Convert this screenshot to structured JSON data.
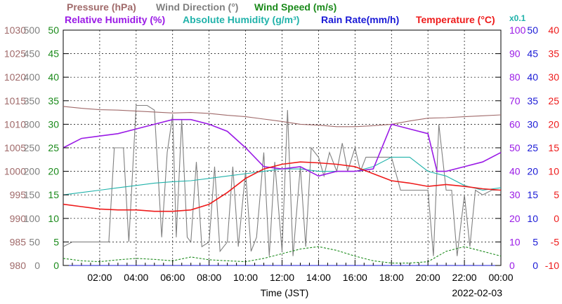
{
  "chart_data": {
    "type": "line",
    "date": "2022-02-03",
    "xlabel": "Time (JST)",
    "x_ticks": [
      "02:00",
      "04:00",
      "06:00",
      "08:00",
      "10:00",
      "12:00",
      "14:00",
      "16:00",
      "18:00",
      "20:00",
      "22:00",
      "00:00"
    ],
    "x_range_hours": [
      0,
      24
    ],
    "multiplier_note": "x0.1",
    "grid": true,
    "axes": [
      {
        "key": "pressure",
        "label": "Pressure (hPa)",
        "color": "#a06a6a",
        "range": [
          980,
          1030
        ],
        "ticks": [
          "980",
          "985",
          "990",
          "995",
          "1000",
          "1005",
          "1010",
          "1015",
          "1020",
          "1025",
          "1030"
        ]
      },
      {
        "key": "wind_dir",
        "label": "Wind Direction (°)",
        "color": "#808080",
        "range": [
          0,
          500
        ],
        "ticks": [
          "0",
          "50",
          "100",
          "150",
          "200",
          "250",
          "300",
          "350",
          "400",
          "450",
          "500"
        ]
      },
      {
        "key": "wind_speed",
        "label": "Wind Speed (m/s)",
        "color": "#1a8a1a",
        "range": [
          0,
          50
        ],
        "ticks": [
          "0",
          "5",
          "10",
          "15",
          "20",
          "25",
          "30",
          "35",
          "40",
          "45",
          "50"
        ]
      },
      {
        "key": "humidity",
        "label": "Relative Humidity (%)",
        "color": "#9a1ae6",
        "range": [
          0,
          100
        ],
        "ticks": [
          "0",
          "10",
          "20",
          "30",
          "40",
          "50",
          "60",
          "70",
          "80",
          "90",
          "100"
        ]
      },
      {
        "key": "abs_humidity",
        "label": "Absolute Humidity (g/m³)",
        "color": "#20b2aa",
        "range": [
          0,
          50
        ],
        "ticks": []
      },
      {
        "key": "rain",
        "label": "Rain Rate(mm/h)",
        "color": "#1a1ad6",
        "range": [
          0,
          50
        ],
        "ticks": [
          "0",
          "5",
          "10",
          "15",
          "20",
          "25",
          "30",
          "35",
          "40",
          "45",
          "50"
        ]
      },
      {
        "key": "temperature",
        "label": "Temperature (°C)",
        "color": "#ee1a1a",
        "range": [
          -10,
          40
        ],
        "ticks": [
          "-10",
          "-5",
          "0",
          "5",
          "10",
          "15",
          "20",
          "25",
          "30",
          "35",
          "40"
        ]
      }
    ],
    "series": [
      {
        "name": "Pressure (hPa)",
        "axis": "pressure",
        "color": "#a06a6a",
        "x": [
          0,
          1,
          2,
          3,
          4,
          5,
          6,
          7,
          8,
          9,
          10,
          11,
          12,
          13,
          14,
          15,
          16,
          17,
          18,
          19,
          20,
          21,
          22,
          23,
          24
        ],
        "values": [
          1013.8,
          1013.4,
          1013.1,
          1013.0,
          1012.8,
          1012.6,
          1012.4,
          1012.5,
          1012.3,
          1011.9,
          1011.6,
          1011.1,
          1010.6,
          1010.0,
          1009.8,
          1009.5,
          1009.5,
          1009.7,
          1010.0,
          1010.7,
          1011.3,
          1011.4,
          1011.6,
          1011.8,
          1012.0
        ]
      },
      {
        "name": "Wind Direction (°)",
        "axis": "wind_dir",
        "color": "#808080",
        "x": [
          0,
          0.5,
          1,
          1.5,
          2,
          2.5,
          2.8,
          3,
          3.3,
          3.6,
          4,
          4.3,
          4.6,
          5,
          5.4,
          5.7,
          6,
          6.2,
          6.5,
          6.8,
          7,
          7.3,
          7.6,
          8,
          8.3,
          8.6,
          9,
          9.3,
          9.6,
          10,
          10.3,
          10.6,
          11,
          11.3,
          11.6,
          12,
          12.3,
          12.6,
          13,
          13.3,
          13.6,
          14,
          14.3,
          14.6,
          15,
          15.3,
          15.6,
          16,
          16.3,
          16.6,
          17,
          17.5,
          18,
          18.5,
          19,
          19.3,
          19.6,
          20,
          20.3,
          20.6,
          21,
          21.3,
          21.6,
          22,
          22.3,
          22.6,
          23,
          23.5,
          24
        ],
        "values": [
          40,
          50,
          50,
          50,
          50,
          50,
          250,
          250,
          250,
          50,
          340,
          340,
          340,
          330,
          60,
          240,
          320,
          60,
          310,
          60,
          50,
          220,
          40,
          50,
          210,
          30,
          50,
          210,
          40,
          200,
          30,
          60,
          240,
          20,
          220,
          30,
          330,
          20,
          210,
          40,
          250,
          230,
          190,
          240,
          200,
          260,
          200,
          250,
          200,
          230,
          230,
          230,
          230,
          160,
          160,
          160,
          160,
          160,
          20,
          300,
          160,
          160,
          20,
          150,
          40,
          160,
          150,
          160,
          160
        ]
      },
      {
        "name": "Wind Speed (m/s)",
        "axis": "wind_speed",
        "color": "#1a8a1a",
        "x": [
          0,
          1,
          2,
          3,
          4,
          5,
          6,
          7,
          8,
          9,
          10,
          11,
          12,
          13,
          14,
          15,
          16,
          17,
          18,
          19,
          20,
          21,
          22,
          23,
          24
        ],
        "values": [
          1.5,
          1.0,
          0.8,
          1.2,
          1.5,
          1.3,
          1.0,
          1.8,
          1.2,
          1.0,
          0.8,
          1.5,
          2.5,
          3.5,
          4.0,
          3.2,
          2.0,
          1.0,
          0.5,
          0.5,
          0.8,
          3.0,
          4.0,
          3.0,
          2.0
        ]
      },
      {
        "name": "Relative Humidity (%)",
        "axis": "humidity",
        "color": "#9a1ae6",
        "x": [
          0,
          1,
          2,
          3,
          4,
          5,
          6,
          7,
          8,
          9,
          10,
          11,
          12,
          13,
          14,
          15,
          16,
          17,
          18,
          19,
          20,
          20.5,
          21,
          22,
          23,
          24
        ],
        "values": [
          50,
          54,
          55,
          56,
          58,
          60,
          62,
          62,
          60,
          57,
          50,
          42,
          41,
          42,
          38,
          40,
          40,
          41,
          60,
          58,
          56,
          40,
          40,
          42,
          44,
          48
        ]
      },
      {
        "name": "Absolute Humidity (g/m³)",
        "axis": "abs_humidity",
        "color": "#20b2aa",
        "x": [
          0,
          1,
          2,
          3,
          4,
          5,
          6,
          7,
          8,
          9,
          10,
          11,
          12,
          13,
          14,
          15,
          16,
          17,
          18,
          19,
          20,
          21,
          22,
          23,
          24
        ],
        "values": [
          15,
          15.5,
          16,
          16.5,
          17,
          17.5,
          17.8,
          18,
          18.5,
          19,
          19.5,
          20,
          20.5,
          20.5,
          20,
          20,
          20,
          21,
          23,
          23,
          20,
          19,
          17,
          16,
          16.5
        ]
      },
      {
        "name": "Rain Rate(mm/h)",
        "axis": "rain",
        "color": "#1a1ad6",
        "x": [
          0,
          24
        ],
        "values": [
          0,
          0
        ]
      },
      {
        "name": "Temperature (°C)",
        "axis": "temperature",
        "color": "#ee1a1a",
        "x": [
          0,
          1,
          2,
          3,
          4,
          5,
          6,
          7,
          8,
          9,
          10,
          11,
          12,
          13,
          14,
          15,
          16,
          17,
          18,
          19,
          20,
          21,
          22,
          23,
          24
        ],
        "values": [
          3.0,
          2.5,
          2.0,
          1.8,
          1.8,
          1.5,
          1.5,
          1.8,
          3.0,
          5.5,
          8.5,
          10.5,
          11.5,
          12.0,
          11.8,
          11.5,
          11.0,
          9.5,
          8.0,
          7.5,
          6.8,
          7.2,
          6.8,
          6.3,
          6.0
        ]
      }
    ]
  }
}
